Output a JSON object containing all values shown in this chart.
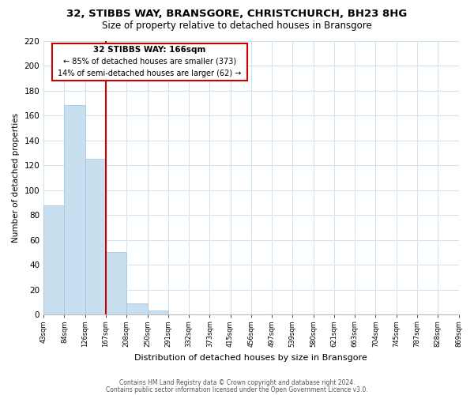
{
  "title": "32, STIBBS WAY, BRANSGORE, CHRISTCHURCH, BH23 8HG",
  "subtitle": "Size of property relative to detached houses in Bransgore",
  "xlabel": "Distribution of detached houses by size in Bransgore",
  "ylabel": "Number of detached properties",
  "bin_labels": [
    "43sqm",
    "84sqm",
    "126sqm",
    "167sqm",
    "208sqm",
    "250sqm",
    "291sqm",
    "332sqm",
    "373sqm",
    "415sqm",
    "456sqm",
    "497sqm",
    "539sqm",
    "580sqm",
    "621sqm",
    "663sqm",
    "704sqm",
    "745sqm",
    "787sqm",
    "828sqm",
    "869sqm"
  ],
  "bar_heights": [
    88,
    168,
    125,
    50,
    9,
    3,
    0,
    0,
    0,
    0,
    0,
    0,
    0,
    0,
    0,
    0,
    0,
    0,
    0,
    0
  ],
  "bar_color": "#c8dff0",
  "bar_edge_color": "#a0c4e0",
  "vline_color": "#cc0000",
  "ylim": [
    0,
    220
  ],
  "yticks": [
    0,
    20,
    40,
    60,
    80,
    100,
    120,
    140,
    160,
    180,
    200,
    220
  ],
  "annotation_title": "32 STIBBS WAY: 166sqm",
  "annotation_line1": "← 85% of detached houses are smaller (373)",
  "annotation_line2": "14% of semi-detached houses are larger (62) →",
  "annotation_box_color": "#ffffff",
  "annotation_box_edge": "#cc0000",
  "grid_color": "#d0e4f0",
  "footer1": "Contains HM Land Registry data © Crown copyright and database right 2024.",
  "footer2": "Contains public sector information licensed under the Open Government Licence v3.0."
}
